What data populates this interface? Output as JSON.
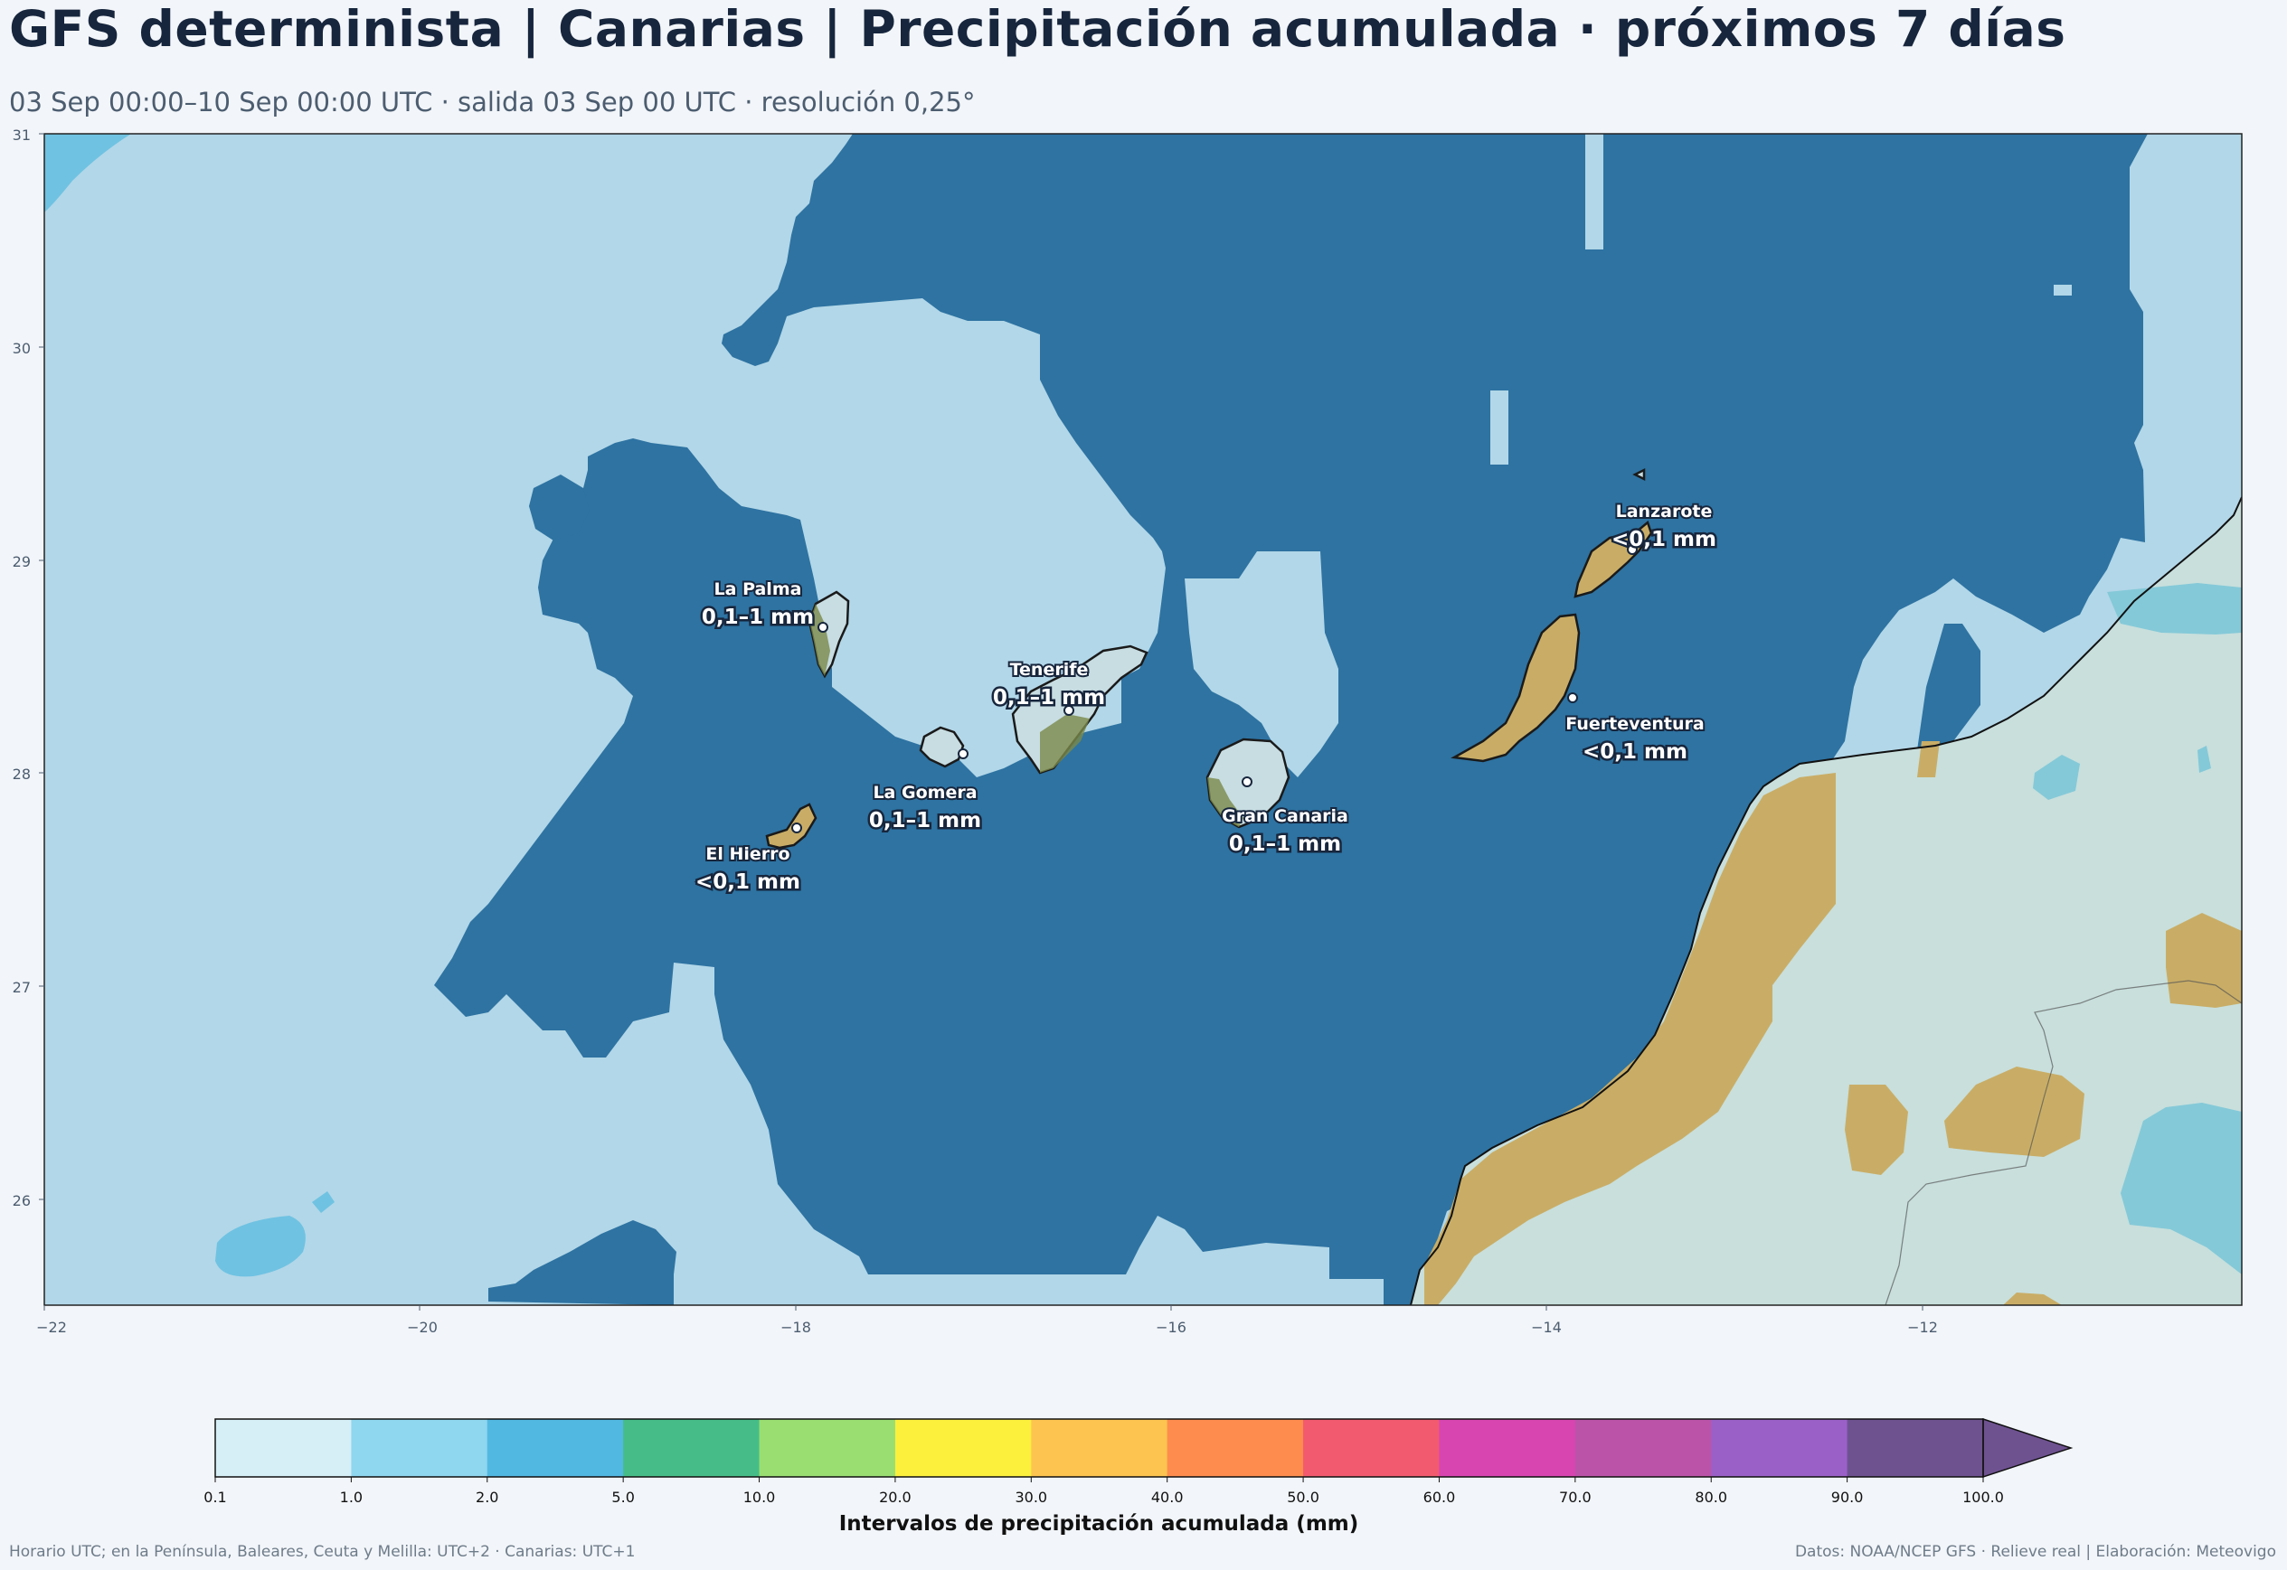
{
  "header": {
    "title": "GFS determinista | Canarias | Precipitación acumulada · próximos 7 días",
    "subtitle": "03 Sep 00:00–10 Sep 00:00 UTC · salida 03 Sep 00 UTC · resolución 0,25°"
  },
  "map": {
    "lon_range": [
      -22,
      -10.3
    ],
    "lat_range": [
      25.5,
      31
    ],
    "x_ticks": [
      "−22",
      "−20",
      "−18",
      "−16",
      "−14",
      "−12"
    ],
    "y_ticks": [
      "31",
      "30",
      "29",
      "28",
      "27",
      "26"
    ],
    "colors": {
      "light_sea_precip": "#b2d7e8",
      "heavy_sea_band": "#2e73a2",
      "land": "#c8dfdc",
      "desert": "#c9ad66",
      "island": "#c7dde2"
    },
    "islands": [
      {
        "name": "La Palma",
        "value": "0,1–1 mm"
      },
      {
        "name": "Tenerife",
        "value": "0,1–1 mm"
      },
      {
        "name": "La Gomera",
        "value": "0,1–1 mm"
      },
      {
        "name": "El Hierro",
        "value": "<0,1 mm"
      },
      {
        "name": "Gran Canaria",
        "value": "0,1–1 mm"
      },
      {
        "name": "Lanzarote",
        "value": "<0,1 mm"
      },
      {
        "name": "Fuerteventura",
        "value": "<0,1 mm"
      }
    ]
  },
  "colorbar": {
    "title": "Intervalos de precipitación acumulada (mm)",
    "labels": [
      "0.1",
      "1.0",
      "2.0",
      "5.0",
      "10.0",
      "20.0",
      "30.0",
      "40.0",
      "50.0",
      "60.0",
      "70.0",
      "80.0",
      "90.0",
      "100.0"
    ],
    "colors": [
      "#d6eef6",
      "#8fd6ef",
      "#51b8e2",
      "#46bd88",
      "#9ade72",
      "#fdf03c",
      "#fec450",
      "#fe8c4e",
      "#f25b6f",
      "#d845b1",
      "#bb54a8",
      "#9a60c8",
      "#6e5290"
    ],
    "extend_color": "#6e5290"
  },
  "footer": {
    "left": "Horario UTC; en la Península, Baleares, Ceuta y Melilla: UTC+2 · Canarias: UTC+1",
    "right": "Datos: NOAA/NCEP GFS · Relieve real | Elaboración: Meteovigo"
  }
}
